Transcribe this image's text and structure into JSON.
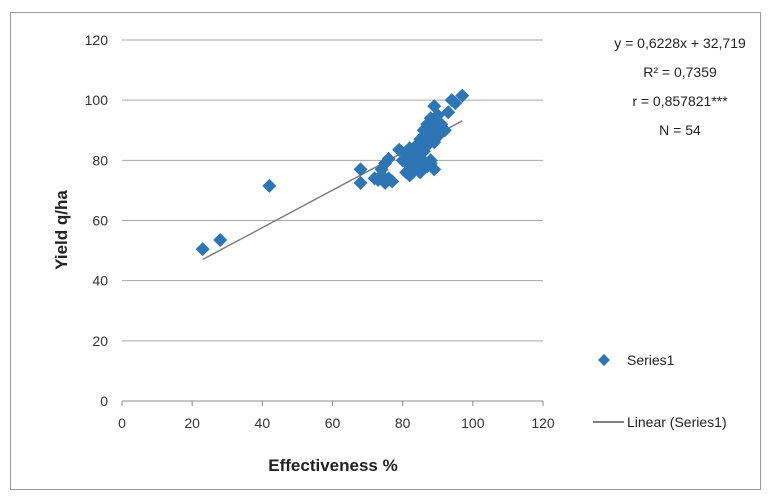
{
  "chart_data": {
    "type": "scatter",
    "xlabel": "Effectiveness %",
    "ylabel": "Yield q/ha",
    "xlim": [
      0,
      120
    ],
    "ylim": [
      0,
      120
    ],
    "xticks": [
      0,
      20,
      40,
      60,
      80,
      100,
      120
    ],
    "yticks": [
      0,
      20,
      40,
      60,
      80,
      100,
      120
    ],
    "grid": "horizontal",
    "legend_position": "right",
    "marker_color": "#2e75b6",
    "line_color": "#7f7f7f",
    "series": [
      {
        "name": "Series1",
        "x": [
          23,
          28,
          42,
          68,
          68,
          72,
          73,
          74,
          74,
          75,
          75,
          76,
          76,
          77,
          79,
          80,
          81,
          81,
          82,
          82,
          82,
          83,
          83,
          83,
          84,
          84,
          84,
          85,
          85,
          85,
          86,
          86,
          86,
          86,
          87,
          87,
          87,
          88,
          88,
          88,
          88,
          89,
          89,
          89,
          89,
          90,
          90,
          90,
          91,
          92,
          93,
          94,
          95,
          97
        ],
        "y": [
          50.5,
          53.5,
          71.5,
          72.5,
          77,
          74,
          73.5,
          75,
          77,
          72.5,
          79,
          80.5,
          74,
          73,
          83.5,
          80,
          76,
          82,
          75,
          78,
          84,
          80,
          83,
          77,
          79,
          85,
          82,
          76,
          81,
          87,
          79,
          83,
          86,
          90,
          78,
          85,
          92,
          80,
          88,
          94,
          79,
          77,
          86,
          90,
          98,
          93,
          88,
          95,
          92,
          90,
          96,
          100,
          99,
          101.5
        ]
      }
    ],
    "trendline": {
      "name": "Linear (Series1)",
      "slope": 0.6228,
      "intercept": 32.719,
      "x_range": [
        23,
        97
      ]
    },
    "annotations": [
      "y = 0,6228x + 32,719",
      "R² = 0,7359",
      "r = 0,857821***",
      "N = 54"
    ]
  }
}
